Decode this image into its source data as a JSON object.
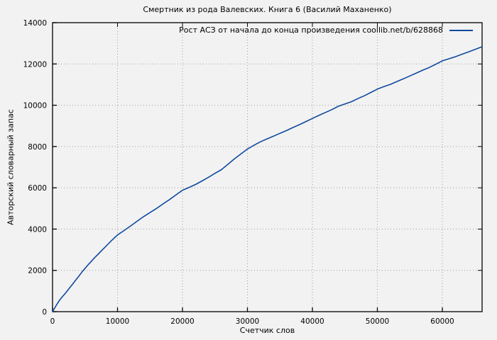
{
  "page": {
    "background_color": "#f2f2f2",
    "grid_color": "#9e9e9e",
    "axis_color": "#000000"
  },
  "chart_data": {
    "type": "line",
    "title": "Смертник из рода Валевских. Книга 6 (Василий Маханенко)",
    "xlabel": "Счетчик слов",
    "ylabel": "Авторский словарный запас",
    "legend_position": "top-right-inside",
    "grid": "dotted",
    "xlim": [
      0,
      66120
    ],
    "ylim": [
      0,
      14000
    ],
    "xticks": [
      0,
      10000,
      20000,
      30000,
      40000,
      50000,
      60000
    ],
    "yticks": [
      0,
      2000,
      4000,
      6000,
      8000,
      10000,
      12000,
      14000
    ],
    "series": [
      {
        "name": "Рост АСЗ от начала до конца произведения coollib.net/b/628868",
        "color": "#0f4a9e",
        "points": [
          [
            0,
            0
          ],
          [
            500,
            270
          ],
          [
            1000,
            520
          ],
          [
            1500,
            720
          ],
          [
            2000,
            900
          ],
          [
            2500,
            1100
          ],
          [
            3000,
            1300
          ],
          [
            3500,
            1500
          ],
          [
            4000,
            1700
          ],
          [
            4500,
            1910
          ],
          [
            5000,
            2100
          ],
          [
            5500,
            2280
          ],
          [
            6000,
            2450
          ],
          [
            6500,
            2620
          ],
          [
            7000,
            2780
          ],
          [
            7500,
            2940
          ],
          [
            8000,
            3100
          ],
          [
            8500,
            3260
          ],
          [
            9000,
            3420
          ],
          [
            9500,
            3570
          ],
          [
            10000,
            3715
          ],
          [
            11000,
            3930
          ],
          [
            12000,
            4150
          ],
          [
            13000,
            4380
          ],
          [
            14000,
            4600
          ],
          [
            15000,
            4800
          ],
          [
            16000,
            5000
          ],
          [
            17000,
            5220
          ],
          [
            18000,
            5430
          ],
          [
            19000,
            5660
          ],
          [
            20000,
            5880
          ],
          [
            21000,
            6020
          ],
          [
            22000,
            6160
          ],
          [
            23000,
            6330
          ],
          [
            24000,
            6510
          ],
          [
            25000,
            6700
          ],
          [
            26000,
            6880
          ],
          [
            27000,
            7140
          ],
          [
            28000,
            7400
          ],
          [
            29000,
            7640
          ],
          [
            30000,
            7880
          ],
          [
            31000,
            8060
          ],
          [
            32000,
            8230
          ],
          [
            33000,
            8370
          ],
          [
            34000,
            8500
          ],
          [
            35000,
            8640
          ],
          [
            36000,
            8770
          ],
          [
            37000,
            8920
          ],
          [
            38000,
            9060
          ],
          [
            39000,
            9210
          ],
          [
            40000,
            9360
          ],
          [
            41000,
            9510
          ],
          [
            42000,
            9650
          ],
          [
            43000,
            9790
          ],
          [
            44000,
            9950
          ],
          [
            45000,
            10060
          ],
          [
            46000,
            10170
          ],
          [
            47000,
            10320
          ],
          [
            48000,
            10460
          ],
          [
            49000,
            10620
          ],
          [
            50000,
            10780
          ],
          [
            51000,
            10900
          ],
          [
            52000,
            11010
          ],
          [
            53000,
            11150
          ],
          [
            54000,
            11280
          ],
          [
            55000,
            11420
          ],
          [
            56000,
            11560
          ],
          [
            57000,
            11700
          ],
          [
            58000,
            11830
          ],
          [
            59000,
            11990
          ],
          [
            60000,
            12150
          ],
          [
            61000,
            12250
          ],
          [
            62000,
            12350
          ],
          [
            63000,
            12470
          ],
          [
            64000,
            12580
          ],
          [
            65000,
            12700
          ],
          [
            66000,
            12820
          ]
        ]
      }
    ]
  }
}
